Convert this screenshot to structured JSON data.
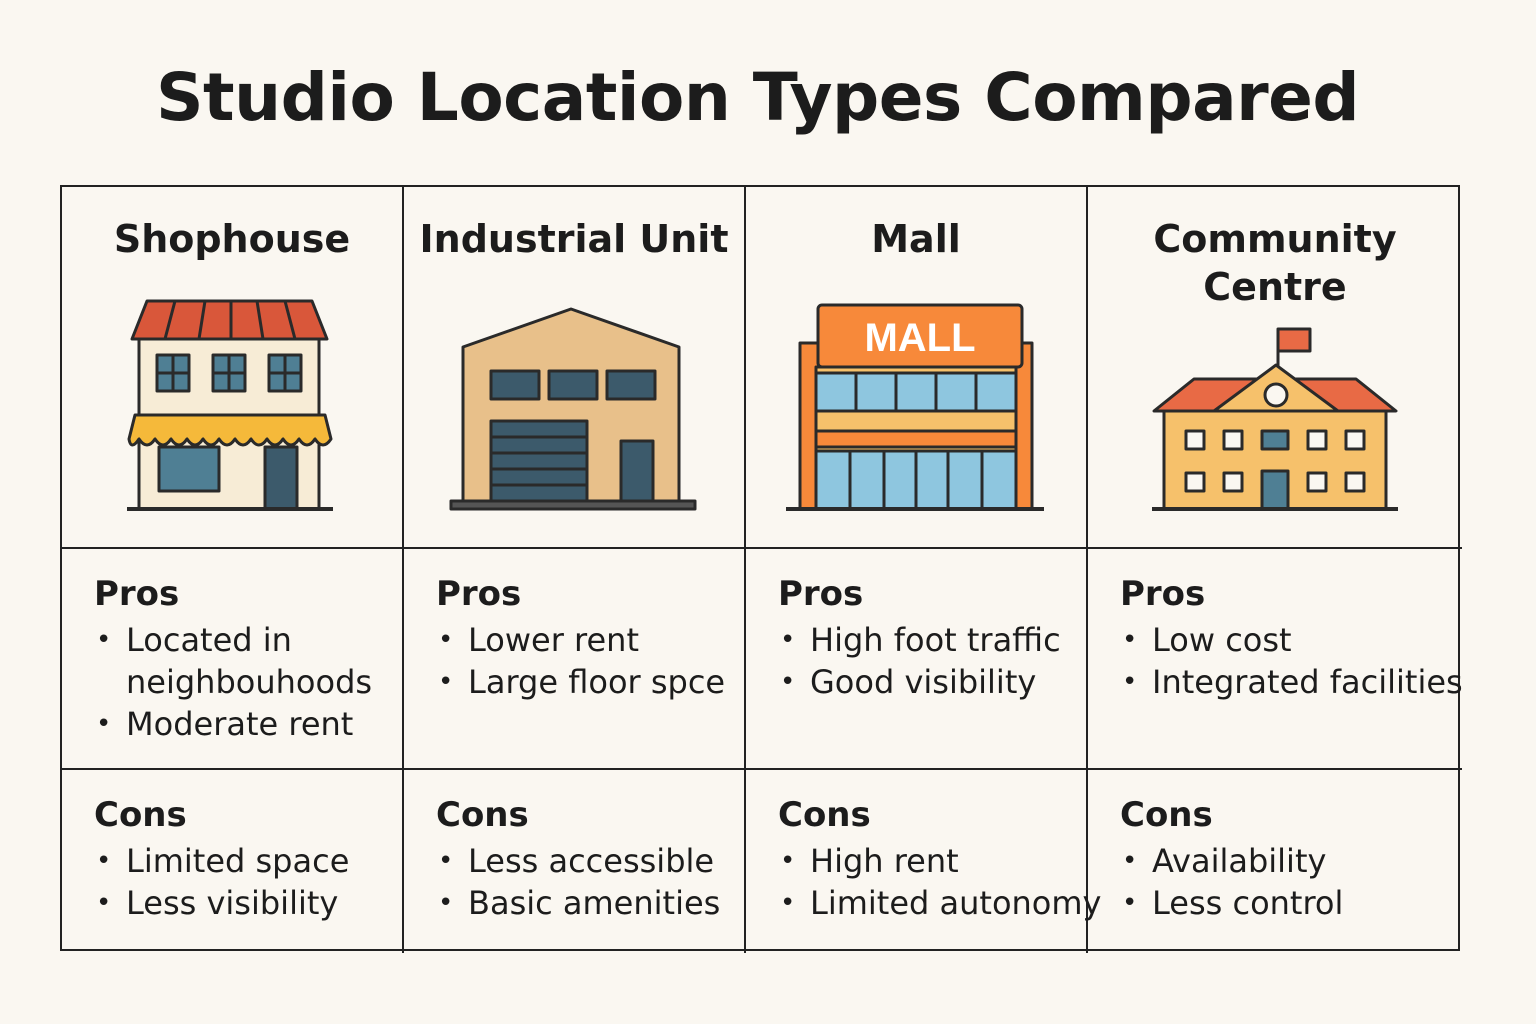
{
  "title": "Studio Location Types Compared",
  "pros_label": "Pros",
  "cons_label": "Cons",
  "columns": [
    {
      "name": "Shophouse",
      "icon": "shophouse-icon",
      "pros": [
        "Located in neighbouhoods",
        "Moderate rent"
      ],
      "cons": [
        "Limited space",
        "Less visibility"
      ]
    },
    {
      "name": "Industrial Unit",
      "icon": "industrial-unit-icon",
      "pros": [
        "Lower rent",
        "Large floor spce"
      ],
      "cons": [
        "Less accessible",
        "Basic amenities"
      ]
    },
    {
      "name": "Mall",
      "icon": "mall-icon",
      "sign_text": "MALL",
      "pros": [
        "High foot traffic",
        "Good visibility"
      ],
      "cons": [
        "High rent",
        "Limited autonomy"
      ]
    },
    {
      "name": "Community Centre",
      "icon": "community-centre-icon",
      "pros": [
        "Low cost",
        "Integrated facilities"
      ],
      "cons": [
        "Availability",
        "Less control"
      ]
    }
  ],
  "colors": {
    "background": "#faf7f1",
    "border": "#222222",
    "roof_red": "#d9573a",
    "awning_yellow": "#f5b93a",
    "window_blue": "#4f7f94",
    "beige": "#e8c08a",
    "mall_orange": "#f7893a",
    "glass_blue": "#8ec6df",
    "centre_yellow": "#f6c16b"
  }
}
